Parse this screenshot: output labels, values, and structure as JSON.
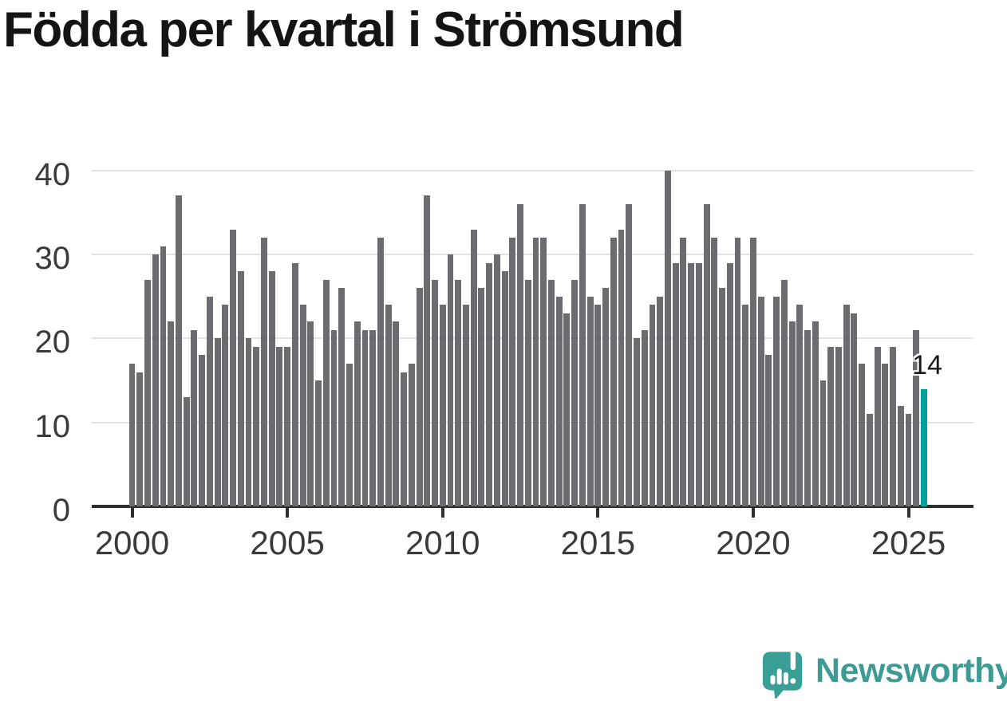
{
  "title": "Födda per kvartal i Strömsund",
  "colors": {
    "title": "#141414",
    "bar": "#6b6b70",
    "highlight": "#00a0a0",
    "grid": "#e2e2e2",
    "axis": "#2e2e2e",
    "tick_label": "#3a3a3a",
    "value_label": "#191919",
    "logo_text": "#3d9b93",
    "logo_icon": "#389e96"
  },
  "chart_data": {
    "type": "bar",
    "title": "Födda per kvartal i Strömsund",
    "x_unit": "quarter",
    "start": "2000-Q1",
    "end": "2025-Q3",
    "values": [
      17,
      16,
      27,
      30,
      31,
      22,
      37,
      13,
      21,
      18,
      25,
      20,
      24,
      33,
      28,
      20,
      19,
      32,
      28,
      19,
      19,
      29,
      24,
      22,
      15,
      27,
      21,
      26,
      17,
      22,
      21,
      21,
      32,
      24,
      22,
      16,
      17,
      26,
      37,
      27,
      24,
      30,
      27,
      24,
      33,
      26,
      29,
      30,
      28,
      32,
      36,
      27,
      32,
      32,
      27,
      25,
      23,
      27,
      36,
      25,
      24,
      26,
      32,
      33,
      36,
      20,
      21,
      24,
      25,
      40,
      29,
      32,
      29,
      29,
      36,
      32,
      26,
      29,
      32,
      24,
      32,
      25,
      18,
      25,
      27,
      22,
      24,
      21,
      22,
      15,
      19,
      19,
      24,
      23,
      17,
      11,
      19,
      17,
      19,
      12,
      11,
      21,
      14
    ],
    "highlight": {
      "index": 102,
      "value": 14,
      "label": "14",
      "quarter": "2025-Q3"
    },
    "y_ticks": [
      0,
      10,
      20,
      30,
      40
    ],
    "x_ticks": [
      {
        "label": "2000",
        "bar_index": 0
      },
      {
        "label": "2005",
        "bar_index": 20
      },
      {
        "label": "2010",
        "bar_index": 40
      },
      {
        "label": "2015",
        "bar_index": 60
      },
      {
        "label": "2020",
        "bar_index": 80
      },
      {
        "label": "2025",
        "bar_index": 100
      }
    ],
    "ylim": [
      0,
      40
    ],
    "grid": "horizontal",
    "legend": "none"
  },
  "logo": {
    "text": "Newsworthy",
    "icon": "newsworthy-speech-bubble-bars-icon"
  }
}
